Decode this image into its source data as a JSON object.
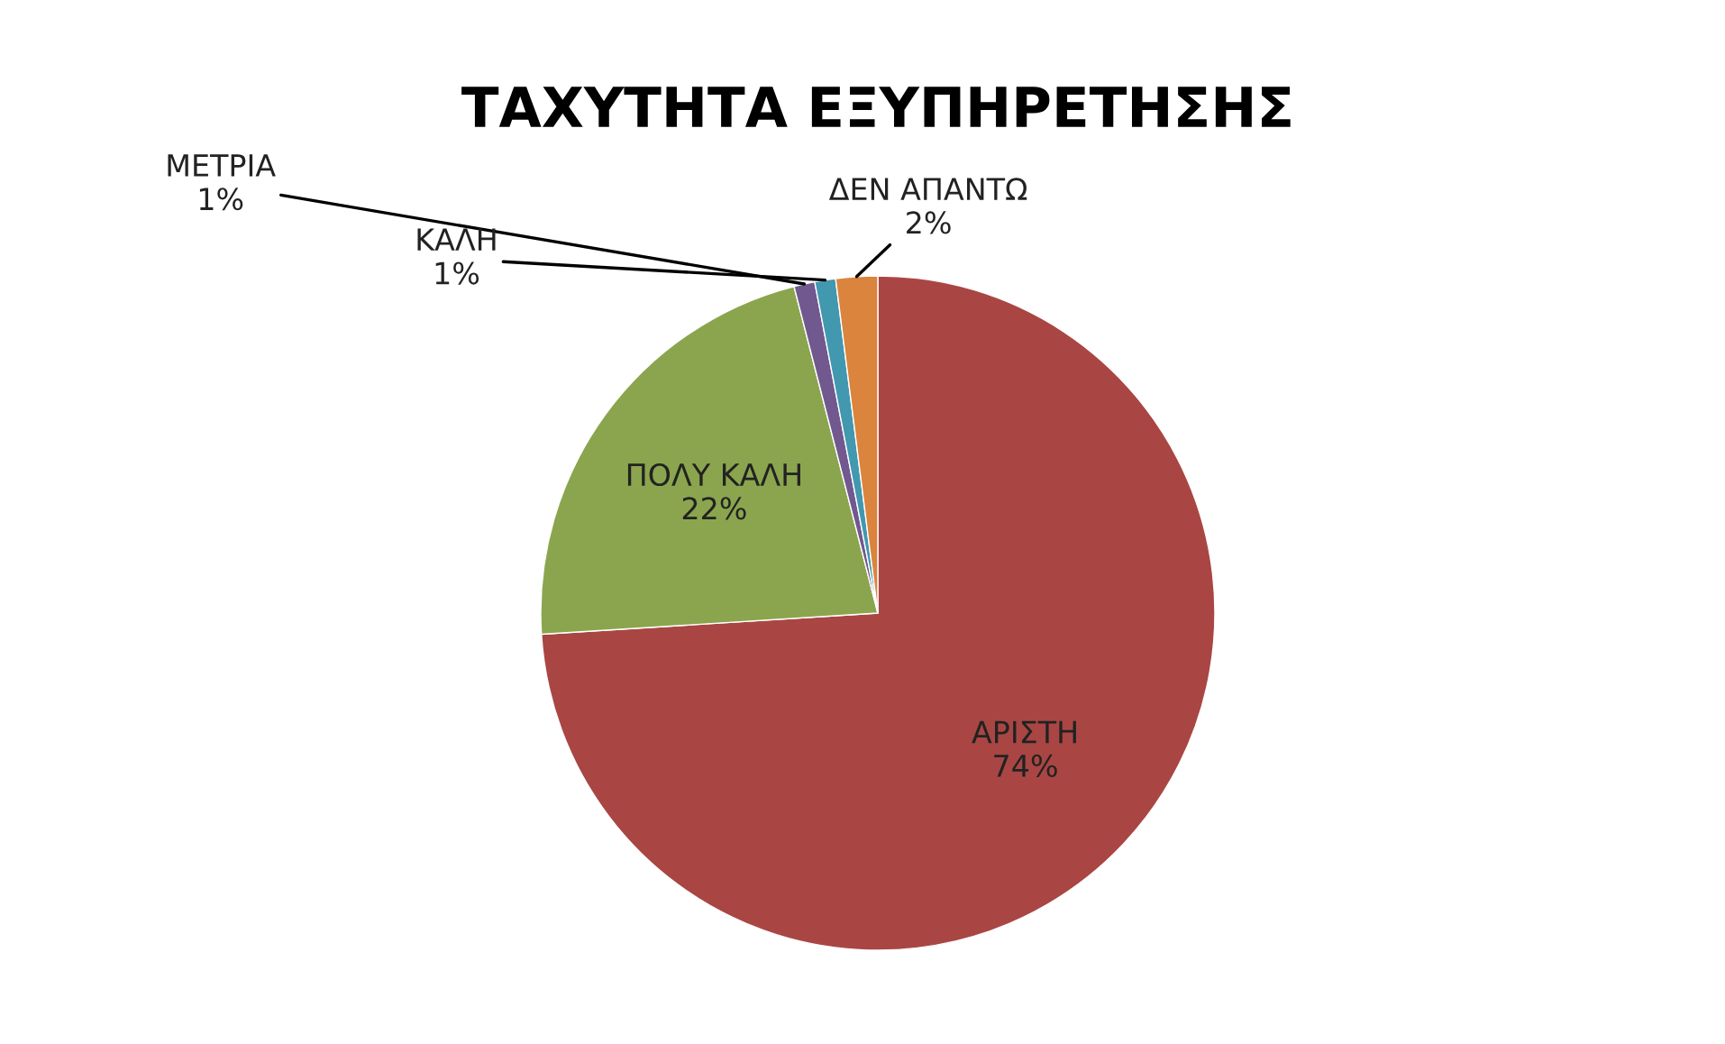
{
  "chart_data": {
    "type": "pie",
    "title": "ΤΑΧΥΤΗΤΑ ΕΞΥΠΗΡΕΤΗΣΗΣ",
    "categories": [
      "ΑΡΙΣΤΗ",
      "ΠΟΛΥ ΚΑΛΗ",
      "ΜΕΤΡΙΑ",
      "ΚΑΛΗ",
      "ΔΕΝ ΑΠΑΝΤΩ"
    ],
    "values": [
      74,
      22,
      1,
      1,
      2
    ],
    "colors": [
      "#a94643",
      "#8ba54e",
      "#71588f",
      "#4198af",
      "#db843d"
    ],
    "value_labels": [
      "74%",
      "22%",
      "1%",
      "1%",
      "2%"
    ],
    "legend": false
  }
}
